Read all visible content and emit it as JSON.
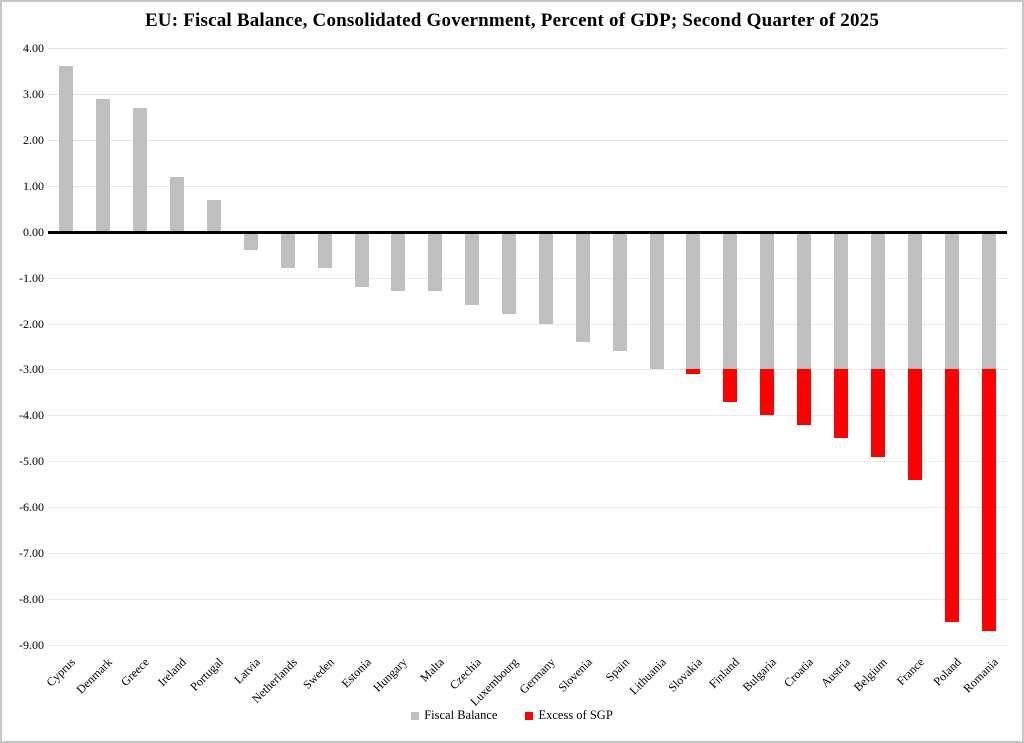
{
  "title": "EU: Fiscal Balance, Consolidated Government, Percent of GDP; Second Quarter of 2025",
  "colors": {
    "bar_gray": "#bfbfbf",
    "bar_red": "#ff0000",
    "zero_axis": "#000000",
    "gridline_solid": "#e2e2e2",
    "gridline_dotted": "#d6d6d6",
    "frame_border": "#c6c6c6"
  },
  "legend": [
    {
      "label": "Fiscal Balance",
      "color": "#bfbfbf"
    },
    {
      "label": "Excess of SGP",
      "color": "#ff0000"
    }
  ],
  "chart_data": {
    "type": "bar",
    "title": "EU: Fiscal Balance, Consolidated Government, Percent of GDP; Second Quarter of 2025",
    "categories": [
      "Cyprus",
      "Denmark",
      "Greece",
      "Ireland",
      "Portugal",
      "Latvia",
      "Netherlands",
      "Sweden",
      "Estonia",
      "Hungary",
      "Malta",
      "Czechia",
      "Luxembourg",
      "Germany",
      "Slovenia",
      "Spain",
      "Lithuania",
      "Slovakia",
      "Finland",
      "Bulgaria",
      "Croatia",
      "Austria",
      "Belgium",
      "France",
      "Poland",
      "Romania"
    ],
    "values": [
      3.6,
      2.9,
      2.7,
      1.2,
      0.7,
      -0.4,
      -0.8,
      -0.8,
      -1.2,
      -1.3,
      -1.3,
      -1.6,
      -1.8,
      -2.0,
      -2.4,
      -2.6,
      -3.0,
      -3.1,
      -3.7,
      -4.0,
      -4.2,
      -4.5,
      -4.9,
      -5.4,
      -8.5,
      -8.7
    ],
    "series": [
      {
        "name": "Fiscal Balance",
        "rule": "balance value, gray portion capped at sgp_threshold"
      },
      {
        "name": "Excess of SGP",
        "rule": "red portion of balance below sgp_threshold"
      }
    ],
    "sgp_threshold": -3.0,
    "ylim": [
      -9.0,
      4.0
    ],
    "ytick_step": 1.0,
    "ytick_format": "2-decimals",
    "xlabel": "",
    "ylabel": "",
    "grid": true,
    "legend_position": "bottom"
  }
}
